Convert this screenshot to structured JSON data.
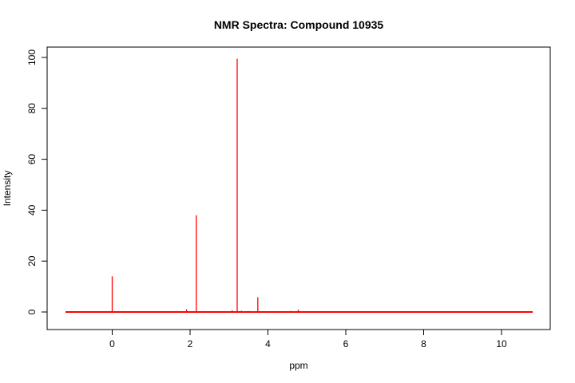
{
  "chart_data": {
    "type": "line",
    "title": "NMR Spectra: Compound 10935",
    "xlabel": "ppm",
    "ylabel": "Intensity",
    "xlim": [
      -1.2,
      10.8
    ],
    "ylim": [
      0,
      100
    ],
    "x_ticks": [
      0,
      2,
      4,
      6,
      8,
      10
    ],
    "y_ticks": [
      0,
      20,
      40,
      60,
      80,
      100
    ],
    "grid": false,
    "legend": "none",
    "series": [
      {
        "color": "#ff0000",
        "baseline": 0,
        "peaks": [
          {
            "x": 0.0,
            "y": 14
          },
          {
            "x": 1.91,
            "y": 1.0
          },
          {
            "x": 2.16,
            "y": 38
          },
          {
            "x": 3.08,
            "y": 0.6
          },
          {
            "x": 3.21,
            "y": 99.5
          },
          {
            "x": 3.32,
            "y": 0.5
          },
          {
            "x": 3.5,
            "y": 0.4
          },
          {
            "x": 3.74,
            "y": 5.8
          },
          {
            "x": 4.58,
            "y": 0.4
          },
          {
            "x": 4.78,
            "y": 0.9
          }
        ]
      }
    ]
  }
}
